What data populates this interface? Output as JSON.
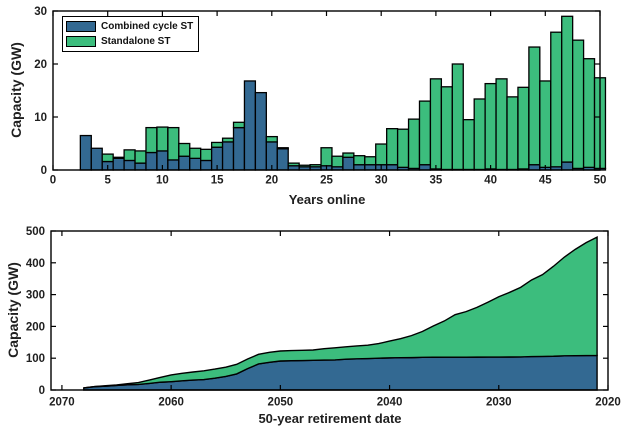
{
  "figure": {
    "background": "#ffffff",
    "text_color": "#202020"
  },
  "colors": {
    "combined_cycle": "#336992",
    "standalone": "#3cbd7d",
    "edge": "#000000"
  },
  "legend": {
    "items": [
      {
        "label": "Combined cycle ST",
        "color_key": "combined_cycle"
      },
      {
        "label": "Standalone ST",
        "color_key": "standalone"
      }
    ],
    "position": "top-left"
  },
  "chart_data": [
    {
      "type": "bar",
      "stacked": true,
      "title": "",
      "xlabel": "Years online",
      "ylabel": "Capacity (GW)",
      "xlim": [
        0,
        50
      ],
      "ylim": [
        0,
        30
      ],
      "xticks": [
        0,
        5,
        10,
        15,
        20,
        25,
        30,
        35,
        40,
        45,
        50
      ],
      "yticks": [
        0,
        10,
        20,
        30
      ],
      "grid": false,
      "legend_position": "top-left",
      "categories": [
        3,
        4,
        5,
        6,
        7,
        8,
        9,
        10,
        11,
        12,
        13,
        14,
        15,
        16,
        17,
        18,
        19,
        20,
        21,
        22,
        23,
        24,
        25,
        26,
        27,
        28,
        29,
        30,
        31,
        32,
        33,
        34,
        35,
        36,
        37,
        38,
        39,
        40,
        41,
        42,
        43,
        44,
        45,
        46,
        47,
        48,
        49,
        50
      ],
      "series": [
        {
          "name": "Combined cycle ST",
          "values": [
            6.5,
            4.1,
            1.6,
            2.2,
            1.8,
            1.3,
            3.3,
            3.6,
            1.9,
            2.6,
            2.2,
            1.8,
            4.3,
            5.3,
            8.0,
            16.8,
            14.6,
            5.3,
            4.0,
            0.8,
            0.6,
            0.6,
            0.8,
            0.6,
            2.4,
            1.0,
            1.0,
            1.0,
            1.0,
            0.5,
            0.3,
            1.0,
            0.2,
            0.1,
            0.1,
            0.1,
            0.1,
            0.2,
            0.1,
            0.1,
            0.2,
            1.0,
            0.5,
            0.6,
            1.5,
            0.3,
            0.5,
            0.3
          ]
        },
        {
          "name": "Standalone ST",
          "values": [
            0,
            0,
            1.4,
            0.2,
            2.0,
            2.3,
            4.7,
            4.5,
            6.1,
            2.4,
            1.9,
            2.1,
            0.9,
            0.7,
            1.0,
            0,
            0,
            1.0,
            0.2,
            0.5,
            0.3,
            0.4,
            3.4,
            2.0,
            0.8,
            1.7,
            1.5,
            3.9,
            6.8,
            7.2,
            9.3,
            12.0,
            17.0,
            15.6,
            19.9,
            9.4,
            13.3,
            16.1,
            17.1,
            13.7,
            15.4,
            22.2,
            16.3,
            25.4,
            27.5,
            24.2,
            20.5,
            17.1
          ]
        }
      ]
    },
    {
      "type": "area",
      "stacked": true,
      "title": "",
      "xlabel": "50-year retirement date",
      "ylabel": "Capacity (GW)",
      "xlim": [
        2071,
        2020
      ],
      "x_reversed": true,
      "ylim": [
        0,
        500
      ],
      "xticks": [
        2070,
        2060,
        2050,
        2040,
        2030,
        2020
      ],
      "yticks": [
        0,
        100,
        200,
        300,
        400,
        500
      ],
      "grid": false,
      "x": [
        2068,
        2067,
        2066,
        2065,
        2064,
        2063,
        2062,
        2061,
        2060,
        2059,
        2058,
        2057,
        2056,
        2055,
        2054,
        2053,
        2052,
        2051,
        2050,
        2049,
        2048,
        2047,
        2046,
        2045,
        2044,
        2043,
        2042,
        2041,
        2040,
        2039,
        2038,
        2037,
        2036,
        2035,
        2034,
        2033,
        2032,
        2031,
        2030,
        2029,
        2028,
        2027,
        2026,
        2025,
        2024,
        2023,
        2022,
        2021
      ],
      "values_are_stack_tops": true,
      "series": [
        {
          "name": "Combined cycle ST",
          "values": [
            6.5,
            10.6,
            12.2,
            14.4,
            16.2,
            17.5,
            20.8,
            24.4,
            26.3,
            28.9,
            31.1,
            32.9,
            37.2,
            42.5,
            50.5,
            67.3,
            81.9,
            87.2,
            91.2,
            92.0,
            92.6,
            93.2,
            94.0,
            94.6,
            97.0,
            98.0,
            99.0,
            100.0,
            101.0,
            101.5,
            101.8,
            102.8,
            103.0,
            103.1,
            103.2,
            103.3,
            103.4,
            103.6,
            103.7,
            103.8,
            104.0,
            105.0,
            105.5,
            106.1,
            107.6,
            107.9,
            108.4,
            108.7
          ]
        },
        {
          "name": "Standalone ST (total)",
          "values": [
            6.5,
            10.6,
            13.6,
            16.0,
            19.8,
            23.4,
            31.4,
            39.5,
            47.5,
            52.5,
            56.6,
            60.5,
            65.7,
            71.7,
            80.7,
            97.5,
            112.1,
            118.4,
            122.6,
            123.9,
            124.8,
            125.8,
            130.0,
            132.6,
            135.8,
            138.5,
            141.0,
            145.9,
            153.7,
            161.4,
            171.0,
            184.0,
            201.1,
            216.8,
            236.8,
            246.4,
            259.8,
            276.1,
            293.3,
            307.2,
            322.8,
            346.0,
            362.8,
            388.8,
            417.8,
            442.3,
            463.3,
            480.7
          ]
        }
      ]
    }
  ]
}
